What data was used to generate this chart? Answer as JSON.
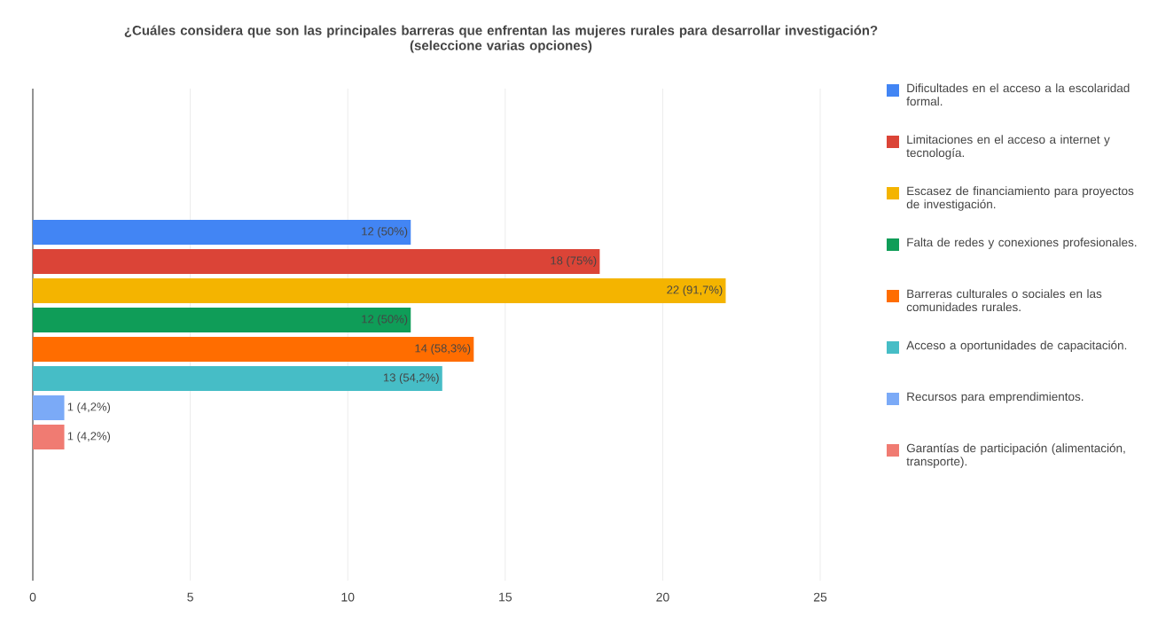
{
  "chart_data": {
    "type": "bar",
    "orientation": "horizontal",
    "title": "¿Cuáles considera que son las principales barreras que enfrentan las mujeres rurales para desarrollar investigación? (seleccione varias opciones)",
    "categories": [
      null
    ],
    "series": [
      {
        "name": "Dificultades en el acceso a la escolaridad formal.",
        "color": "#4285f4",
        "values": [
          12
        ],
        "value_labels": [
          "12 (50%)"
        ]
      },
      {
        "name": "Limitaciones en el acceso a internet y tecnología.",
        "color": "#db4437",
        "values": [
          18
        ],
        "value_labels": [
          "18 (75%)"
        ]
      },
      {
        "name": "Escasez de financiamiento para proyectos de investigación.",
        "color": "#f4b400",
        "values": [
          22
        ],
        "value_labels": [
          "22 (91,7%)"
        ]
      },
      {
        "name": "Falta de redes y conexiones profesionales.",
        "color": "#0f9d58",
        "values": [
          12
        ],
        "value_labels": [
          "12 (50%)"
        ]
      },
      {
        "name": "Barreras culturales o sociales en las comunidades rurales.",
        "color": "#ff6d00",
        "values": [
          14
        ],
        "value_labels": [
          "14 (58,3%)"
        ]
      },
      {
        "name": "Acceso a oportunidades de capacitación.",
        "color": "#46bdc6",
        "values": [
          13
        ],
        "value_labels": [
          "13 (54,2%)"
        ]
      },
      {
        "name": "Recursos para emprendimientos.",
        "color": "#7baaf7",
        "values": [
          1
        ],
        "value_labels": [
          "1 (4,2%)"
        ]
      },
      {
        "name": "Garantías de participación (alimentación, transporte).",
        "color": "#f07b72",
        "values": [
          1
        ],
        "value_labels": [
          "1 (4,2%)"
        ]
      }
    ],
    "xlim": [
      0,
      25
    ],
    "xticks": [
      0,
      5,
      10,
      15,
      20,
      25
    ],
    "grid": "x",
    "legend": "right",
    "tick_labels": "x"
  }
}
